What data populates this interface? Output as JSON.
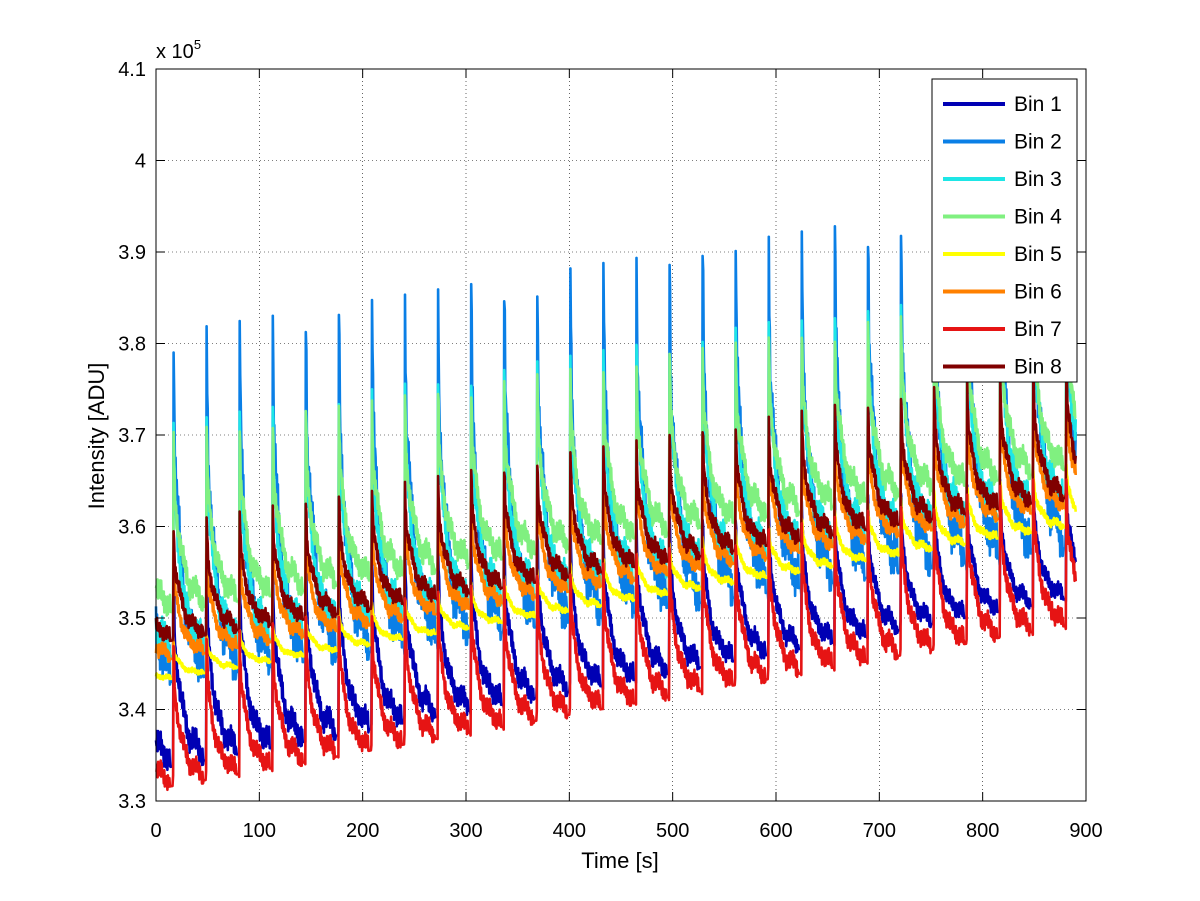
{
  "chart_data": {
    "type": "line",
    "title": "",
    "xlabel": "Time [s]",
    "ylabel": "Intensity [ADU]",
    "y_exponent_label": "x 10",
    "y_exponent_power": "5",
    "xlim": [
      0,
      900
    ],
    "ylim": [
      3.3,
      4.1
    ],
    "y_scale": 100000,
    "grid": true,
    "legend_position": "top-right",
    "x_ticks": [
      0,
      100,
      200,
      300,
      400,
      500,
      600,
      700,
      800,
      900
    ],
    "x_tick_labels": [
      "0",
      "100",
      "200",
      "300",
      "400",
      "500",
      "600",
      "700",
      "800",
      "900"
    ],
    "y_ticks": [
      3.3,
      3.4,
      3.5,
      3.6,
      3.7,
      3.8,
      3.9,
      4.0,
      4.1
    ],
    "y_tick_labels": [
      "3.3",
      "3.4",
      "3.5",
      "3.6",
      "3.7",
      "3.8",
      "3.9",
      "4",
      "4.1"
    ],
    "cycle_period_s": 32,
    "x_start": 0,
    "x_end": 890,
    "series": [
      {
        "name": "Bin 1",
        "color": "#0000b4",
        "start_min": 3.33,
        "end_min": 3.52,
        "start_max": 3.55,
        "end_max": 3.66
      },
      {
        "name": "Bin 2",
        "color": "#0a7fe6",
        "start_min": 3.42,
        "end_min": 3.57,
        "start_max": 3.81,
        "end_max": 3.97
      },
      {
        "name": "Bin 3",
        "color": "#1ee6e6",
        "start_min": 3.45,
        "end_min": 3.62,
        "start_max": 3.71,
        "end_max": 3.88
      },
      {
        "name": "Bin 4",
        "color": "#80f080",
        "start_min": 3.5,
        "end_min": 3.66,
        "start_max": 3.7,
        "end_max": 3.86
      },
      {
        "name": "Bin 5",
        "color": "#ffff00",
        "start_min": 3.43,
        "end_min": 3.6,
        "start_max": 3.47,
        "end_max": 3.67
      },
      {
        "name": "Bin 6",
        "color": "#ff8000",
        "start_min": 3.45,
        "end_min": 3.62,
        "start_max": 3.57,
        "end_max": 3.75
      },
      {
        "name": "Bin 7",
        "color": "#e61414",
        "start_min": 3.31,
        "end_min": 3.49,
        "start_max": 3.47,
        "end_max": 3.66
      },
      {
        "name": "Bin 8",
        "color": "#800000",
        "start_min": 3.47,
        "end_min": 3.63,
        "start_max": 3.6,
        "end_max": 3.78
      }
    ]
  }
}
